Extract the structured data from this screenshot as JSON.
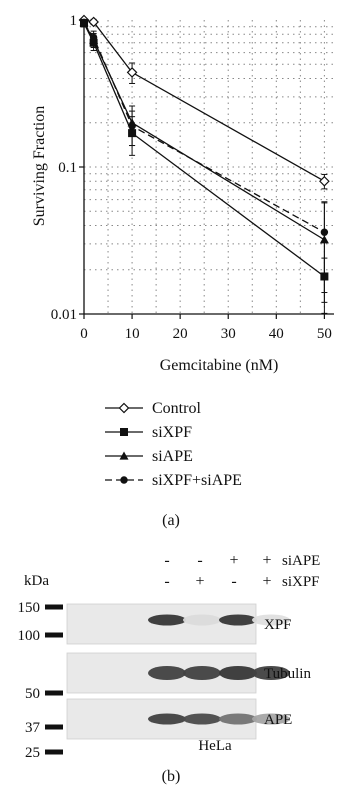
{
  "chart_data": {
    "type": "line",
    "xlabel": "Gemcitabine (nM)",
    "ylabel": "Surviving Fraction",
    "yscale": "log",
    "xlim": [
      0,
      52
    ],
    "ylim": [
      0.01,
      1
    ],
    "x_ticks": [
      "0",
      "10",
      "20",
      "30",
      "40",
      "50"
    ],
    "y_ticks": [
      "0.01",
      "0.1",
      "1"
    ],
    "grid": "dotted",
    "x": [
      0,
      2,
      10,
      50
    ],
    "series": [
      {
        "name": "Control",
        "marker": "open-diamond",
        "line": "solid",
        "values": [
          1.0,
          0.97,
          0.44,
          0.08
        ],
        "errors": [
          0.03,
          0.04,
          0.07,
          0.009
        ]
      },
      {
        "name": "siXPF",
        "marker": "filled-square",
        "line": "solid",
        "values": [
          0.95,
          0.7,
          0.17,
          0.018
        ],
        "errors": [
          0.05,
          0.08,
          0.05,
          0.006
        ]
      },
      {
        "name": "siAPE",
        "marker": "filled-triangle",
        "line": "solid",
        "values": [
          0.96,
          0.73,
          0.2,
          0.032
        ],
        "errors": [
          0.05,
          0.08,
          0.06,
          0.025
        ]
      },
      {
        "name": "siXPF+siAPE",
        "marker": "filled-circle",
        "line": "dashed",
        "values": [
          0.95,
          0.76,
          0.19,
          0.036
        ],
        "errors": [
          0.05,
          0.08,
          0.05,
          0.022
        ]
      }
    ],
    "panel_label": "(a)"
  },
  "blot": {
    "kda_label": "kDa",
    "markers": [
      "150",
      "100",
      "50",
      "37",
      "25"
    ],
    "conditions": [
      {
        "name": "siAPE",
        "signs": [
          "-",
          "-",
          "+",
          "+"
        ]
      },
      {
        "name": "siXPF",
        "signs": [
          "-",
          "+",
          "-",
          "+"
        ]
      }
    ],
    "bands": [
      {
        "name": "XPF",
        "intensities": [
          0.9,
          0.08,
          0.9,
          0.06
        ]
      },
      {
        "name": "Tubulin",
        "intensities": [
          0.85,
          0.85,
          0.9,
          0.85
        ]
      },
      {
        "name": "APE",
        "intensities": [
          0.85,
          0.8,
          0.6,
          0.35
        ]
      }
    ],
    "cell_line": "HeLa",
    "panel_label": "(b)"
  }
}
